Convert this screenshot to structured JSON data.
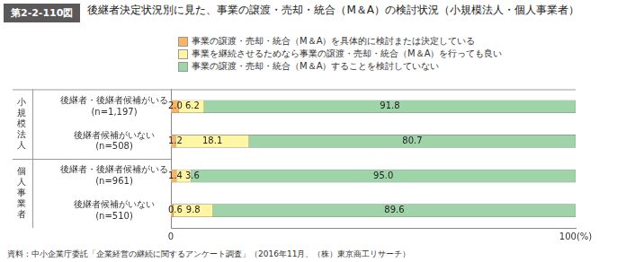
{
  "chart_data": {
    "type": "bar",
    "figure_label": "第2-2-110図",
    "title": "後継者決定状況別に見た、事業の譲渡・売却・統合（M＆A）の検討状況（小規模法人・個人事業者）",
    "source": "資料：中小企業庁委託「企業経営の継続に関するアンケート調査」（2016年11月、（株）東京商工リサーチ）",
    "orientation": "horizontal",
    "stacked": true,
    "data_labels": true,
    "grid": false,
    "legend": "top",
    "categories": [
      [
        "後継者・後継者候補がいる",
        "(n=1,197)"
      ],
      [
        "後継者候補がいない",
        "(n=508)"
      ],
      [
        "後継者・後継者候補がいる",
        "(n=961)"
      ],
      [
        "後継者候補がいない",
        "(n=510)"
      ]
    ],
    "groups": [
      "小規模法人",
      "小規模法人",
      "個人事業者",
      "個人事業者"
    ],
    "series": [
      {
        "name": "事業の譲渡・売却・統合（M＆A）を具体的に検討または決定している",
        "color": "#f8b565",
        "values": [
          2.0,
          1.2,
          1.4,
          0.6
        ],
        "value_labels": [
          "2.0",
          "1.2",
          "1.4",
          "0.6"
        ]
      },
      {
        "name": "事業を継続させるためなら事業の譲渡・売却・統合（M＆A）を行っても良い",
        "color": "#fff6a3",
        "values": [
          6.2,
          18.1,
          3.6,
          9.8
        ],
        "value_labels": [
          "6.2",
          "18.1",
          "3.6",
          "9.8"
        ]
      },
      {
        "name": "事業の譲渡・売却・統合（M＆A）することを検討していない",
        "color": "#9fd4a9",
        "values": [
          91.8,
          80.7,
          95.0,
          89.6
        ],
        "value_labels": [
          "91.8",
          "80.7",
          "95.0",
          "89.6"
        ]
      }
    ],
    "xlim": [
      0,
      100
    ],
    "xticks": [
      0,
      {
        "value": 100,
        "label": "100(%)"
      }
    ]
  }
}
